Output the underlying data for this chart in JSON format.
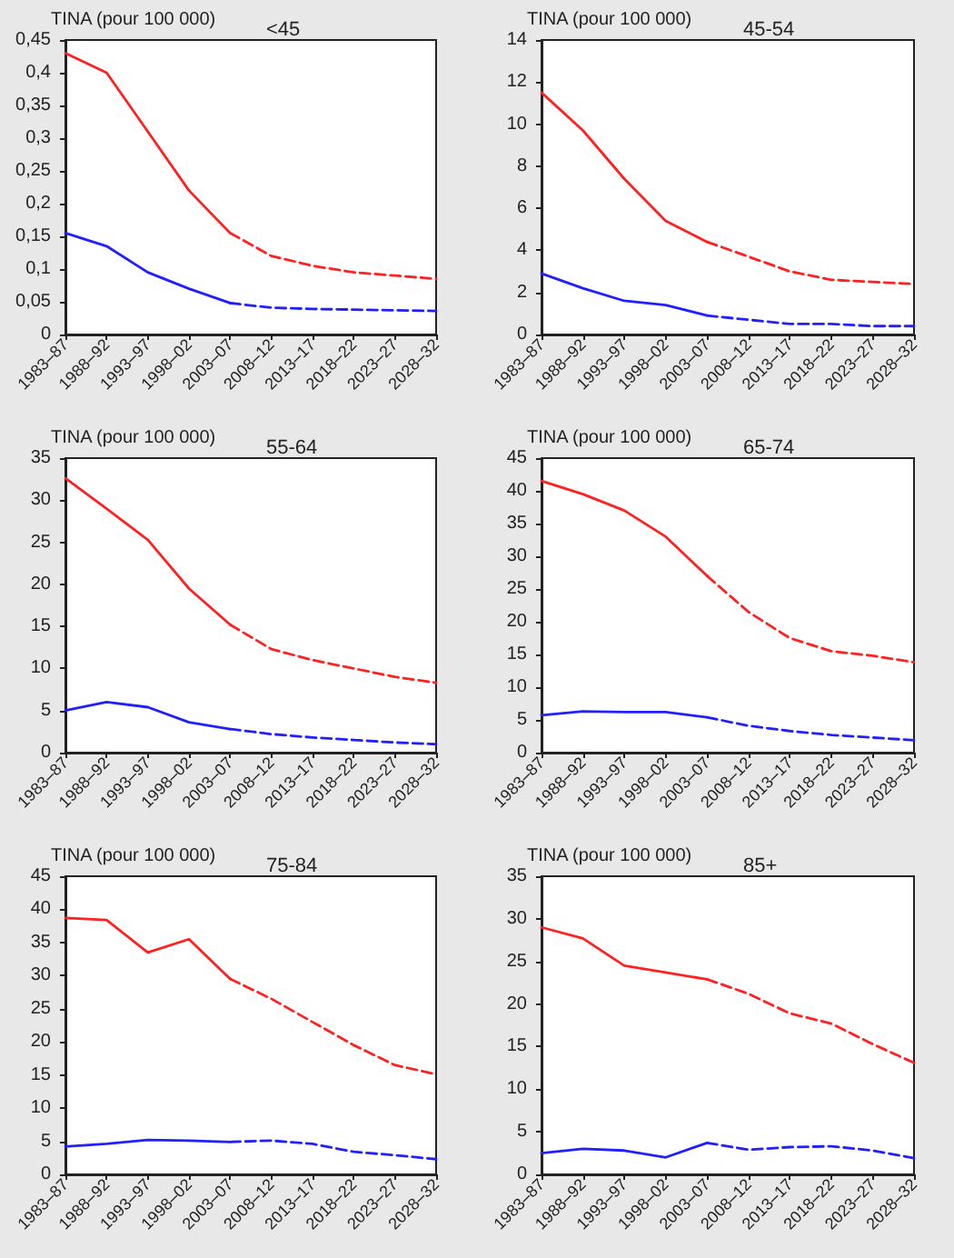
{
  "chart_data": [
    {
      "type": "line",
      "title": "<45",
      "ylabel": "TINA (pour 100 000)",
      "categories": [
        "1983–87",
        "1988–92",
        "1993–97",
        "1998–02",
        "2003–07",
        "2008–12",
        "2013–17",
        "2018–22",
        "2023–27",
        "2028–32"
      ],
      "ylim": [
        0,
        0.45
      ],
      "yticks": [
        0,
        {
          "value": 0.05,
          "label": "0,05"
        },
        {
          "value": 0.1,
          "label": "0,1"
        },
        {
          "value": 0.15,
          "label": "0,15"
        },
        {
          "value": 0.2,
          "label": "0,2"
        },
        {
          "value": 0.25,
          "label": "0,25"
        },
        {
          "value": 0.3,
          "label": "0,3"
        },
        {
          "value": 0.35,
          "label": "0,35"
        },
        {
          "value": 0.4,
          "label": "0,4"
        },
        {
          "value": 0.45,
          "label": "0,45"
        }
      ],
      "grid": false,
      "marker": "none",
      "series": [
        {
          "color": "#ff2020",
          "line_style": "solid",
          "values": [
            0.43,
            0.4,
            0.31,
            0.22,
            0.155,
            null,
            null,
            null,
            null,
            null
          ]
        },
        {
          "color": "#ff2020",
          "line_style": "dashed",
          "values": [
            null,
            null,
            null,
            null,
            0.155,
            0.12,
            0.105,
            0.095,
            0.09,
            0.085
          ]
        },
        {
          "color": "#2020ff",
          "line_style": "solid",
          "values": [
            0.155,
            0.135,
            0.095,
            0.07,
            0.048,
            null,
            null,
            null,
            null,
            null
          ]
        },
        {
          "color": "#2020ff",
          "line_style": "dashed",
          "values": [
            null,
            null,
            null,
            null,
            0.048,
            0.041,
            0.039,
            0.038,
            0.037,
            0.036
          ]
        }
      ]
    },
    {
      "type": "line",
      "title": "45-54",
      "ylabel": "TINA (pour 100 000)",
      "categories": [
        "1983–87",
        "1988–92",
        "1993–97",
        "1998–02",
        "2003–07",
        "2008–12",
        "2013–17",
        "2018–22",
        "2023–27",
        "2028–32"
      ],
      "ylim": [
        0,
        14
      ],
      "yticks": [
        0,
        2,
        4,
        6,
        8,
        10,
        12,
        14
      ],
      "grid": false,
      "marker": "none",
      "series": [
        {
          "color": "#ff2020",
          "line_style": "solid",
          "values": [
            11.5,
            9.7,
            7.4,
            5.4,
            4.4,
            null,
            null,
            null,
            null,
            null
          ]
        },
        {
          "color": "#ff2020",
          "line_style": "dashed",
          "values": [
            null,
            null,
            null,
            null,
            4.4,
            3.7,
            3.0,
            2.6,
            2.5,
            2.4
          ]
        },
        {
          "color": "#2020ff",
          "line_style": "solid",
          "values": [
            2.9,
            2.2,
            1.6,
            1.4,
            0.9,
            null,
            null,
            null,
            null,
            null
          ]
        },
        {
          "color": "#2020ff",
          "line_style": "dashed",
          "values": [
            null,
            null,
            null,
            null,
            0.9,
            0.7,
            0.5,
            0.5,
            0.4,
            0.4
          ]
        }
      ]
    },
    {
      "type": "line",
      "title": "55-64",
      "ylabel": "TINA (pour 100 000)",
      "categories": [
        "1983–87",
        "1988–92",
        "1993–97",
        "1998–02",
        "2003–07",
        "2008–12",
        "2013–17",
        "2018–22",
        "2023–27",
        "2028–32"
      ],
      "ylim": [
        0,
        35
      ],
      "yticks": [
        0,
        5,
        10,
        15,
        20,
        25,
        30,
        35
      ],
      "grid": false,
      "marker": "none",
      "series": [
        {
          "color": "#ff2020",
          "line_style": "solid",
          "values": [
            32.6,
            29,
            25.3,
            19.5,
            15.2,
            null,
            null,
            null,
            null,
            null
          ]
        },
        {
          "color": "#ff2020",
          "line_style": "dashed",
          "values": [
            null,
            null,
            null,
            null,
            15.2,
            12.3,
            11,
            10,
            9,
            8.3
          ]
        },
        {
          "color": "#2020ff",
          "line_style": "solid",
          "values": [
            5,
            6,
            5.4,
            3.6,
            2.8,
            null,
            null,
            null,
            null,
            null
          ]
        },
        {
          "color": "#2020ff",
          "line_style": "dashed",
          "values": [
            null,
            null,
            null,
            null,
            2.8,
            2.2,
            1.8,
            1.5,
            1.2,
            1.0
          ]
        }
      ]
    },
    {
      "type": "line",
      "title": "65-74",
      "ylabel": "TINA (pour 100 000)",
      "categories": [
        "1983–87",
        "1988–92",
        "1993–97",
        "1998–02",
        "2003–07",
        "2008–12",
        "2013–17",
        "2018–22",
        "2023–27",
        "2028–32"
      ],
      "ylim": [
        0,
        45
      ],
      "yticks": [
        0,
        5,
        10,
        15,
        20,
        25,
        30,
        35,
        40,
        45
      ],
      "grid": false,
      "marker": "none",
      "series": [
        {
          "color": "#ff2020",
          "line_style": "solid",
          "values": [
            41.5,
            39.5,
            37,
            33,
            27,
            null,
            null,
            null,
            null,
            null
          ]
        },
        {
          "color": "#ff2020",
          "line_style": "dashed",
          "values": [
            null,
            null,
            null,
            null,
            27,
            21.5,
            17.5,
            15.5,
            14.8,
            13.8
          ]
        },
        {
          "color": "#2020ff",
          "line_style": "solid",
          "values": [
            5.7,
            6.3,
            6.2,
            6.2,
            5.4,
            null,
            null,
            null,
            null,
            null
          ]
        },
        {
          "color": "#2020ff",
          "line_style": "dashed",
          "values": [
            null,
            null,
            null,
            null,
            5.4,
            4.1,
            3.3,
            2.7,
            2.3,
            1.9
          ]
        }
      ]
    },
    {
      "type": "line",
      "title": "75-84",
      "ylabel": "TINA (pour 100 000)",
      "categories": [
        "1983–87",
        "1988–92",
        "1993–97",
        "1998–02",
        "2003–07",
        "2008–12",
        "2013–17",
        "2018–22",
        "2023–27",
        "2028–32"
      ],
      "ylim": [
        0,
        45
      ],
      "yticks": [
        0,
        5,
        10,
        15,
        20,
        25,
        30,
        35,
        40,
        45
      ],
      "grid": false,
      "marker": "none",
      "series": [
        {
          "color": "#ff2020",
          "line_style": "solid",
          "values": [
            38.7,
            38.4,
            33.5,
            35.5,
            29.5,
            null,
            null,
            null,
            null,
            null
          ]
        },
        {
          "color": "#ff2020",
          "line_style": "dashed",
          "values": [
            null,
            null,
            null,
            null,
            29.5,
            26.5,
            23,
            19.5,
            16.5,
            15.1
          ]
        },
        {
          "color": "#2020ff",
          "line_style": "solid",
          "values": [
            4.2,
            4.6,
            5.2,
            5.1,
            4.9,
            null,
            null,
            null,
            null,
            null
          ]
        },
        {
          "color": "#2020ff",
          "line_style": "dashed",
          "values": [
            null,
            null,
            null,
            null,
            4.9,
            5.1,
            4.6,
            3.4,
            2.9,
            2.3
          ]
        }
      ]
    },
    {
      "type": "line",
      "title": "85+",
      "ylabel": "TINA (pour 100 000)",
      "categories": [
        "1983–87",
        "1988–92",
        "1993–97",
        "1998–02",
        "2003–07",
        "2008–12",
        "2013–17",
        "2018–22",
        "2023–27",
        "2028–32"
      ],
      "ylim": [
        0,
        35
      ],
      "yticks": [
        0,
        5,
        10,
        15,
        20,
        25,
        30,
        35
      ],
      "grid": false,
      "marker": "none",
      "series": [
        {
          "color": "#ff2020",
          "line_style": "solid",
          "values": [
            29,
            27.7,
            24.5,
            23.7,
            22.9,
            null,
            null,
            null,
            null,
            null
          ]
        },
        {
          "color": "#ff2020",
          "line_style": "dashed",
          "values": [
            null,
            null,
            null,
            null,
            22.9,
            21.2,
            18.9,
            17.7,
            15.3,
            13.1
          ]
        },
        {
          "color": "#2020ff",
          "line_style": "solid",
          "values": [
            2.5,
            3.0,
            2.8,
            2.0,
            3.7,
            null,
            null,
            null,
            null,
            null
          ]
        },
        {
          "color": "#2020ff",
          "line_style": "dashed",
          "values": [
            null,
            null,
            null,
            null,
            3.7,
            2.9,
            3.2,
            3.3,
            2.8,
            1.9
          ]
        }
      ]
    }
  ]
}
